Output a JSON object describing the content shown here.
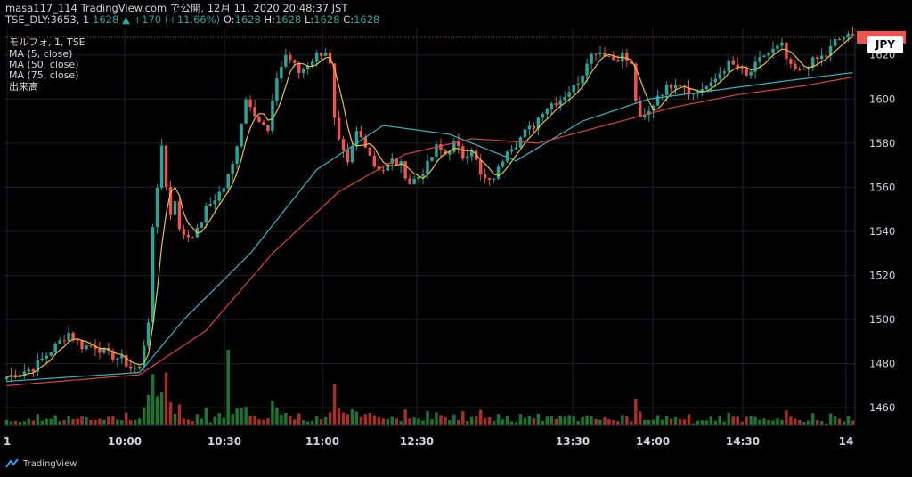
{
  "header": {
    "line1": "masa117_114 TradingView.com で公開, 12月 11, 2020 20:48:37 JST",
    "symbol": "TSE_DLY:3653, 1",
    "last": "1628",
    "change": "+170 (+11.66%)",
    "o_label": "O:",
    "o": "1628",
    "h_label": "H:",
    "h": "1628",
    "l_label": "L:",
    "l": "1628",
    "c_label": "C:",
    "c": "1628"
  },
  "indicators": {
    "title": "モルフォ, 1, TSE",
    "ma5": "MA (5, close)",
    "ma50": "MA (50, close)",
    "ma75": "MA (75, close)",
    "volume": "出来高"
  },
  "currency_label": "JPY",
  "footer": {
    "brand": "TradingView"
  },
  "colors": {
    "up": "#26a69a",
    "down": "#ef5350",
    "ma5": "#f0c030",
    "ma50": "#2fb8c8",
    "ma75": "#e04040",
    "grid": "#1c1f26"
  },
  "chart_data": {
    "type": "candlestick",
    "x_ticks": [
      "1",
      "10:00",
      "10:30",
      "11:00",
      "12:30",
      "13:30",
      "14:00",
      "14:30",
      "14"
    ],
    "y_ticks": [
      1460,
      1480,
      1500,
      1520,
      1540,
      1560,
      1580,
      1600,
      1620
    ],
    "ylim": [
      1452,
      1632
    ],
    "last_price": 1628,
    "close_path": [
      [
        0,
        1474
      ],
      [
        3,
        1476
      ],
      [
        6,
        1478
      ],
      [
        9,
        1484
      ],
      [
        12,
        1490
      ],
      [
        14,
        1494
      ],
      [
        17,
        1488
      ],
      [
        20,
        1488
      ],
      [
        23,
        1484
      ],
      [
        26,
        1482
      ],
      [
        28,
        1478
      ],
      [
        30,
        1478
      ],
      [
        32,
        1500
      ],
      [
        33,
        1540
      ],
      [
        34,
        1560
      ],
      [
        35,
        1580
      ],
      [
        36,
        1560
      ],
      [
        37,
        1548
      ],
      [
        38,
        1555
      ],
      [
        39,
        1540
      ],
      [
        41,
        1538
      ],
      [
        43,
        1540
      ],
      [
        45,
        1550
      ],
      [
        47,
        1555
      ],
      [
        49,
        1560
      ],
      [
        51,
        1570
      ],
      [
        53,
        1590
      ],
      [
        54,
        1600
      ],
      [
        55,
        1598
      ],
      [
        57,
        1590
      ],
      [
        59,
        1585
      ],
      [
        61,
        1610
      ],
      [
        63,
        1620
      ],
      [
        64,
        1618
      ],
      [
        66,
        1612
      ],
      [
        68,
        1616
      ],
      [
        70,
        1620
      ],
      [
        72,
        1622
      ],
      [
        73,
        1615
      ],
      [
        74,
        1590
      ],
      [
        75,
        1580
      ],
      [
        77,
        1570
      ],
      [
        79,
        1585
      ],
      [
        81,
        1580
      ],
      [
        83,
        1570
      ],
      [
        85,
        1568
      ],
      [
        87,
        1572
      ],
      [
        89,
        1570
      ],
      [
        91,
        1562
      ],
      [
        93,
        1565
      ],
      [
        95,
        1570
      ],
      [
        97,
        1578
      ],
      [
        99,
        1575
      ],
      [
        101,
        1580
      ],
      [
        103,
        1574
      ],
      [
        105,
        1578
      ],
      [
        107,
        1565
      ],
      [
        109,
        1562
      ],
      [
        111,
        1568
      ],
      [
        113,
        1578
      ],
      [
        115,
        1580
      ],
      [
        117,
        1585
      ],
      [
        119,
        1588
      ],
      [
        121,
        1595
      ],
      [
        123,
        1598
      ],
      [
        125,
        1600
      ],
      [
        127,
        1604
      ],
      [
        128,
        1605
      ],
      [
        130,
        1612
      ],
      [
        131,
        1618
      ],
      [
        133,
        1622
      ],
      [
        135,
        1621
      ],
      [
        137,
        1618
      ],
      [
        139,
        1620
      ],
      [
        141,
        1615
      ],
      [
        142,
        1600
      ],
      [
        143,
        1590
      ],
      [
        145,
        1594
      ],
      [
        147,
        1602
      ],
      [
        149,
        1605
      ],
      [
        151,
        1608
      ],
      [
        153,
        1606
      ],
      [
        155,
        1602
      ],
      [
        157,
        1605
      ],
      [
        159,
        1606
      ],
      [
        161,
        1612
      ],
      [
        163,
        1616
      ],
      [
        165,
        1614
      ],
      [
        167,
        1610
      ],
      [
        169,
        1615
      ],
      [
        171,
        1620
      ],
      [
        173,
        1622
      ],
      [
        175,
        1624
      ],
      [
        176,
        1618
      ],
      [
        177,
        1614
      ],
      [
        179,
        1612
      ],
      [
        181,
        1616
      ],
      [
        183,
        1618
      ],
      [
        185,
        1620
      ],
      [
        187,
        1626
      ],
      [
        189,
        1628
      ],
      [
        191,
        1628
      ]
    ],
    "ma50_path": [
      [
        0,
        1472
      ],
      [
        30,
        1476
      ],
      [
        40,
        1500
      ],
      [
        55,
        1530
      ],
      [
        70,
        1568
      ],
      [
        85,
        1588
      ],
      [
        100,
        1584
      ],
      [
        115,
        1572
      ],
      [
        130,
        1590
      ],
      [
        145,
        1600
      ],
      [
        160,
        1604
      ],
      [
        175,
        1608
      ],
      [
        191,
        1612
      ]
    ],
    "ma75_path": [
      [
        0,
        1470
      ],
      [
        30,
        1475
      ],
      [
        45,
        1495
      ],
      [
        60,
        1530
      ],
      [
        75,
        1558
      ],
      [
        90,
        1575
      ],
      [
        105,
        1582
      ],
      [
        120,
        1580
      ],
      [
        135,
        1588
      ],
      [
        150,
        1596
      ],
      [
        165,
        1602
      ],
      [
        180,
        1606
      ],
      [
        191,
        1610
      ]
    ]
  }
}
